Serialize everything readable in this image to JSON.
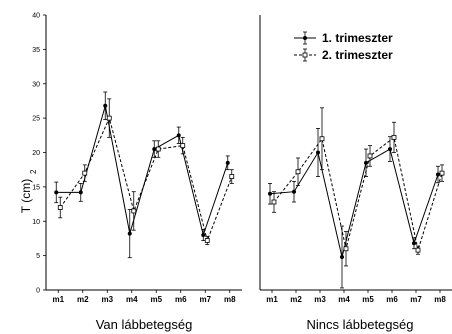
{
  "chart_data": {
    "type": "line",
    "ylim": [
      0,
      40
    ],
    "yticks": [
      "0",
      "5",
      "10",
      "15",
      "20",
      "25",
      "30",
      "35",
      "40"
    ],
    "categories": [
      "m1",
      "m2",
      "m3",
      "m4",
      "m5",
      "m6",
      "m7",
      "m8"
    ],
    "ylabel_main": "T (cm)",
    "ylabel_sub": "2",
    "legend": [
      "1. trimeszter",
      "2. trimeszter"
    ],
    "legend_position": "top-right",
    "panels": [
      {
        "title": "Van lábbetegség",
        "series": [
          {
            "name": "1. trimeszter",
            "values": [
              14.2,
              14.2,
              26.8,
              8.2,
              20.5,
              22.5,
              8.0,
              18.5
            ],
            "errors": [
              1.5,
              1.3,
              2.0,
              3.5,
              1.2,
              1.2,
              0.8,
              1.0
            ]
          },
          {
            "name": "2. trimeszter",
            "values": [
              12.0,
              17.0,
              25.0,
              11.5,
              20.5,
              21.0,
              7.2,
              16.5
            ],
            "errors": [
              1.5,
              1.2,
              2.8,
              2.8,
              1.2,
              1.2,
              0.6,
              1.0
            ]
          }
        ]
      },
      {
        "title": "Nincs lábbetegség",
        "series": [
          {
            "name": "1. trimeszter",
            "values": [
              14.0,
              14.3,
              20.0,
              4.8,
              18.5,
              20.5,
              6.8,
              16.8
            ],
            "errors": [
              1.5,
              1.5,
              3.5,
              4.5,
              2.0,
              1.8,
              0.8,
              1.2
            ]
          },
          {
            "name": "2. trimeszter",
            "values": [
              12.8,
              17.2,
              22.0,
              6.0,
              19.5,
              22.2,
              5.8,
              17.0
            ],
            "errors": [
              1.5,
              2.0,
              4.5,
              2.5,
              1.5,
              2.2,
              0.6,
              1.2
            ]
          }
        ]
      }
    ]
  }
}
